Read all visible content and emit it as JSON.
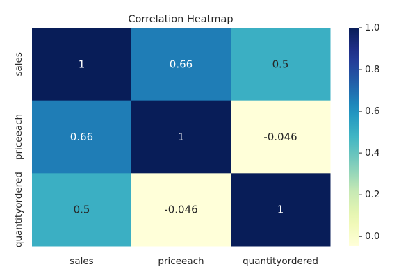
{
  "chart_data": {
    "type": "heatmap",
    "title": "Correlation Heatmap",
    "row_labels": [
      "sales",
      "priceeach",
      "quantityordered"
    ],
    "col_labels": [
      "sales",
      "priceeach",
      "quantityordered"
    ],
    "values": [
      [
        1,
        0.66,
        0.5
      ],
      [
        0.66,
        1,
        -0.046
      ],
      [
        0.5,
        -0.046,
        1
      ]
    ],
    "cell_text": [
      [
        "1",
        "0.66",
        "0.5"
      ],
      [
        "0.66",
        "1",
        "-0.046"
      ],
      [
        "0.5",
        "-0.046",
        "1"
      ]
    ],
    "colormap": "YlGnBu",
    "colorbar": {
      "range": [
        -0.046,
        1.0
      ],
      "ticks": [
        0.0,
        0.2,
        0.4,
        0.6,
        0.8,
        1.0
      ],
      "tick_labels": [
        "0.0",
        "0.2",
        "0.4",
        "0.6",
        "0.8",
        "1.0"
      ]
    },
    "grid": false
  }
}
